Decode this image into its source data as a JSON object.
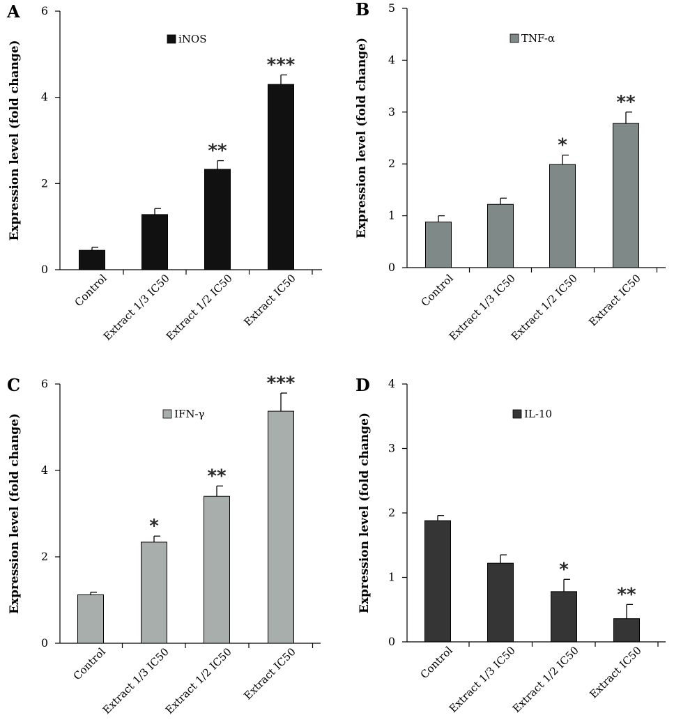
{
  "chart_data": [
    {
      "panel": "A",
      "type": "bar",
      "legend": "iNOS",
      "ylabel": "Expression level (fold change)",
      "xlabel": "",
      "categories": [
        "Control",
        "Extract 1/3 IC50",
        "Extract 1/2 IC50",
        "Extract IC50"
      ],
      "values": [
        0.45,
        1.28,
        2.33,
        4.3
      ],
      "errors": [
        0.07,
        0.14,
        0.2,
        0.22
      ],
      "significance": [
        "",
        "",
        "**",
        "***"
      ],
      "ylim": [
        0,
        6
      ],
      "yticks": [
        "0",
        "2",
        "4",
        "6"
      ],
      "color": "#111111",
      "grid": false,
      "legend_position": "top-center"
    },
    {
      "panel": "B",
      "type": "bar",
      "legend": "TNF-α",
      "ylabel": "Expression level (fold change)",
      "xlabel": "",
      "categories": [
        "Control",
        "Extract 1/3 IC50",
        "Extract 1/2 IC50",
        "Extract IC50"
      ],
      "values": [
        0.88,
        1.22,
        1.99,
        2.78
      ],
      "errors": [
        0.12,
        0.12,
        0.18,
        0.22
      ],
      "significance": [
        "",
        "",
        "*",
        "**"
      ],
      "ylim": [
        0,
        5
      ],
      "yticks": [
        "0",
        "1",
        "2",
        "3",
        "4",
        "5"
      ],
      "color": "#7f8a88",
      "grid": false,
      "legend_position": "top-center"
    },
    {
      "panel": "C",
      "type": "bar",
      "legend": "IFN-γ",
      "ylabel": "Expression level (fold change)",
      "xlabel": "",
      "categories": [
        "Control",
        "Extract 1/3 IC50",
        "Extract 1/2 IC50",
        "Extract IC50"
      ],
      "values": [
        1.12,
        2.34,
        3.4,
        5.37
      ],
      "errors": [
        0.06,
        0.14,
        0.24,
        0.42
      ],
      "significance": [
        "",
        "*",
        "**",
        "***"
      ],
      "ylim": [
        0,
        6
      ],
      "yticks": [
        "0",
        "2",
        "4",
        "6"
      ],
      "color": "#a8aeac",
      "grid": false,
      "legend_position": "top-center"
    },
    {
      "panel": "D",
      "type": "bar",
      "legend": "IL-10",
      "ylabel": "Expression level (fold change)",
      "xlabel": "",
      "categories": [
        "Control",
        "Extract 1/3 IC50",
        "Extract 1/2 IC50",
        "Extract IC50"
      ],
      "values": [
        1.88,
        1.22,
        0.78,
        0.36
      ],
      "errors": [
        0.08,
        0.13,
        0.19,
        0.22
      ],
      "significance": [
        "",
        "",
        "*",
        "**"
      ],
      "ylim": [
        0,
        4
      ],
      "yticks": [
        "0",
        "1",
        "2",
        "3",
        "4"
      ],
      "color": "#353536",
      "grid": false,
      "legend_position": "top-center"
    }
  ]
}
